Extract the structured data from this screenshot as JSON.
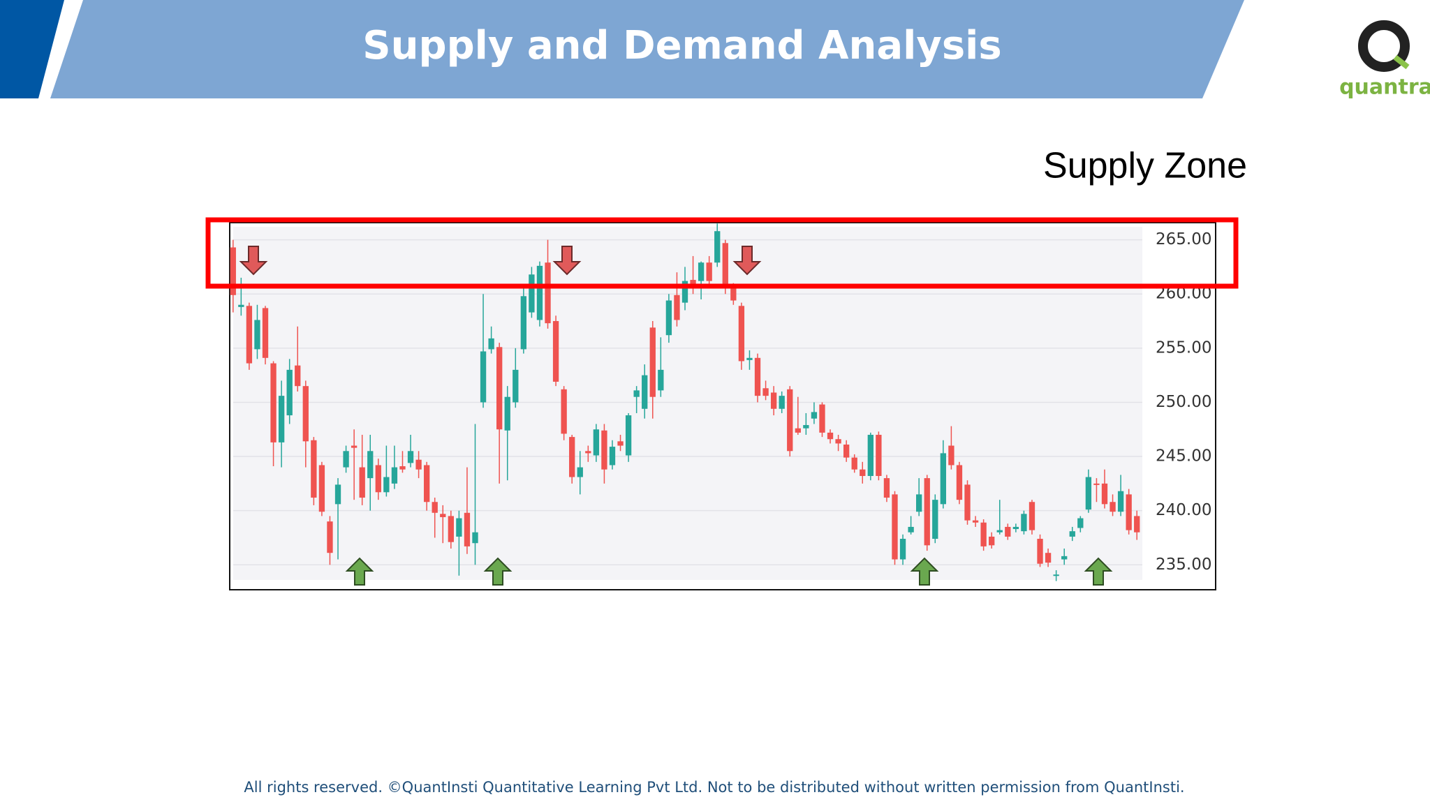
{
  "slide": {
    "title": "Supply and Demand Analysis",
    "logo_text": "quantra",
    "footer": "All rights reserved. ©QuantInsti Quantitative Learning Pvt Ltd. Not to be distributed without written permission from QuantInsti."
  },
  "chart_data": {
    "type": "candlestick",
    "annotation": "Supply Zone",
    "up_color": "#26a69a",
    "down_color": "#ef5350",
    "ylim": [
      233.6,
      266.2
    ],
    "yticks": [
      {
        "value": 235,
        "label": "235.00"
      },
      {
        "value": 240,
        "label": "240.00"
      },
      {
        "value": 245,
        "label": "245.00"
      },
      {
        "value": 250,
        "label": "250.00"
      },
      {
        "value": 255,
        "label": "255.00"
      },
      {
        "value": 260,
        "label": "260.00"
      },
      {
        "value": 265,
        "label": "265.00"
      }
    ],
    "grid": true,
    "ohlc": [
      [
        264.3,
        265.0,
        258.3,
        259.9
      ],
      [
        258.8,
        261.5,
        258.0,
        259.0
      ],
      [
        258.9,
        259.2,
        253.0,
        253.6
      ],
      [
        254.9,
        259.0,
        254.0,
        257.6
      ],
      [
        258.7,
        258.9,
        253.5,
        254.1
      ],
      [
        253.6,
        253.8,
        244.1,
        246.3
      ],
      [
        246.3,
        252.0,
        244.0,
        250.6
      ],
      [
        248.8,
        254.0,
        248.0,
        253.0
      ],
      [
        253.4,
        257.0,
        251.0,
        251.5
      ],
      [
        251.5,
        252.0,
        244.0,
        246.4
      ],
      [
        246.5,
        246.8,
        240.5,
        241.2
      ],
      [
        244.2,
        244.5,
        239.5,
        239.9
      ],
      [
        239.0,
        239.5,
        235.0,
        236.1
      ],
      [
        240.6,
        243.0,
        235.5,
        242.4
      ],
      [
        244.0,
        246.0,
        243.5,
        245.5
      ],
      [
        246.0,
        247.5,
        241.0,
        245.8
      ],
      [
        244.0,
        247.0,
        240.5,
        241.2
      ],
      [
        243.0,
        247.0,
        240.0,
        245.5
      ],
      [
        244.2,
        244.8,
        241.0,
        241.7
      ],
      [
        241.7,
        246.0,
        241.3,
        243.1
      ],
      [
        242.5,
        246.0,
        242.0,
        244.0
      ],
      [
        244.1,
        245.5,
        243.5,
        243.8
      ],
      [
        244.4,
        247.0,
        244.0,
        245.5
      ],
      [
        244.7,
        245.5,
        243.0,
        243.8
      ],
      [
        244.2,
        244.5,
        240.0,
        240.8
      ],
      [
        240.8,
        241.2,
        237.5,
        239.8
      ],
      [
        239.7,
        240.5,
        237.0,
        239.4
      ],
      [
        239.5,
        240.0,
        236.5,
        237.1
      ],
      [
        237.6,
        240.0,
        234.0,
        239.3
      ],
      [
        239.8,
        244.0,
        236.0,
        236.7
      ],
      [
        237.0,
        248.0,
        235.0,
        238.0
      ],
      [
        250.0,
        260.0,
        249.5,
        254.7
      ],
      [
        254.9,
        257.0,
        254.5,
        255.9
      ],
      [
        255.1,
        255.5,
        242.5,
        247.5
      ],
      [
        247.4,
        251.5,
        242.8,
        250.5
      ],
      [
        250.0,
        255.0,
        249.5,
        253.0
      ],
      [
        254.9,
        260.5,
        254.5,
        259.8
      ],
      [
        258.3,
        262.5,
        257.8,
        261.8
      ],
      [
        257.6,
        263.0,
        257.0,
        262.6
      ],
      [
        262.9,
        265.0,
        256.8,
        257.3
      ],
      [
        257.5,
        258.0,
        251.5,
        251.9
      ],
      [
        251.2,
        251.5,
        246.5,
        247.1
      ],
      [
        246.8,
        247.0,
        242.5,
        243.1
      ],
      [
        243.1,
        245.5,
        241.5,
        244.0
      ],
      [
        245.5,
        246.0,
        244.5,
        245.3
      ],
      [
        245.1,
        248.0,
        244.5,
        247.5
      ],
      [
        247.4,
        248.0,
        242.5,
        243.8
      ],
      [
        244.2,
        246.5,
        243.8,
        245.9
      ],
      [
        246.4,
        247.0,
        245.5,
        246.0
      ],
      [
        245.1,
        249.0,
        244.5,
        248.8
      ],
      [
        250.5,
        251.5,
        249.0,
        251.1
      ],
      [
        249.4,
        253.5,
        248.5,
        252.5
      ],
      [
        256.9,
        257.5,
        248.5,
        250.5
      ],
      [
        251.1,
        256.0,
        250.5,
        253.0
      ],
      [
        256.2,
        260.0,
        255.5,
        259.4
      ],
      [
        259.9,
        262.0,
        257.0,
        257.6
      ],
      [
        259.2,
        262.5,
        258.5,
        261.2
      ],
      [
        261.3,
        263.5,
        260.0,
        260.5
      ],
      [
        261.2,
        263.0,
        259.5,
        262.9
      ],
      [
        262.9,
        263.5,
        260.5,
        261.2
      ],
      [
        262.9,
        266.5,
        262.5,
        265.8
      ],
      [
        264.7,
        265.0,
        260.0,
        260.5
      ],
      [
        260.5,
        261.0,
        259.0,
        259.4
      ],
      [
        258.9,
        259.2,
        253.0,
        253.8
      ],
      [
        253.9,
        254.8,
        253.0,
        254.1
      ],
      [
        254.1,
        254.5,
        250.0,
        250.6
      ],
      [
        251.3,
        252.0,
        250.2,
        250.6
      ],
      [
        250.9,
        251.5,
        248.8,
        249.4
      ],
      [
        249.4,
        251.0,
        249.0,
        250.6
      ],
      [
        251.2,
        251.5,
        245.0,
        245.5
      ],
      [
        247.6,
        250.5,
        247.0,
        247.2
      ],
      [
        247.6,
        249.0,
        247.0,
        247.9
      ],
      [
        248.5,
        250.0,
        248.0,
        249.1
      ],
      [
        249.8,
        250.0,
        246.8,
        247.2
      ],
      [
        247.2,
        247.5,
        246.2,
        246.6
      ],
      [
        246.6,
        247.0,
        245.5,
        246.2
      ],
      [
        246.1,
        246.5,
        244.5,
        244.9
      ],
      [
        244.9,
        245.2,
        243.5,
        243.8
      ],
      [
        243.8,
        244.5,
        242.5,
        243.2
      ],
      [
        243.2,
        247.2,
        242.8,
        247.0
      ],
      [
        247.0,
        247.3,
        242.8,
        243.2
      ],
      [
        243.0,
        243.3,
        240.8,
        241.2
      ],
      [
        241.5,
        241.8,
        235.0,
        235.5
      ],
      [
        235.5,
        237.8,
        235.0,
        237.4
      ],
      [
        238.0,
        239.5,
        237.8,
        238.5
      ],
      [
        239.9,
        243.0,
        239.5,
        241.5
      ],
      [
        243.0,
        243.3,
        236.3,
        236.8
      ],
      [
        237.4,
        241.5,
        237.0,
        241.0
      ],
      [
        240.6,
        246.5,
        240.2,
        245.3
      ],
      [
        246.0,
        247.8,
        243.8,
        244.2
      ],
      [
        244.2,
        244.5,
        240.6,
        241.0
      ],
      [
        242.4,
        242.8,
        238.7,
        239.1
      ],
      [
        239.1,
        239.5,
        238.5,
        238.9
      ],
      [
        238.9,
        239.2,
        236.3,
        236.7
      ],
      [
        237.6,
        238.0,
        236.5,
        236.8
      ],
      [
        238.0,
        241.0,
        237.8,
        238.2
      ],
      [
        238.5,
        238.8,
        237.3,
        237.6
      ],
      [
        238.3,
        238.8,
        238.0,
        238.5
      ],
      [
        238.1,
        240.0,
        237.8,
        239.7
      ],
      [
        240.8,
        241.0,
        237.8,
        238.2
      ],
      [
        237.4,
        237.8,
        234.8,
        235.1
      ],
      [
        236.1,
        236.5,
        234.8,
        235.2
      ],
      [
        234.0,
        234.5,
        233.5,
        234.1
      ],
      [
        235.5,
        236.5,
        235.0,
        235.8
      ],
      [
        237.6,
        238.5,
        237.2,
        238.1
      ],
      [
        238.4,
        239.5,
        238.0,
        239.3
      ],
      [
        240.1,
        243.8,
        239.8,
        243.1
      ],
      [
        242.5,
        243.0,
        240.8,
        242.4
      ],
      [
        242.5,
        243.8,
        240.2,
        240.6
      ],
      [
        240.8,
        241.5,
        239.5,
        239.9
      ],
      [
        239.9,
        243.3,
        239.5,
        241.8
      ],
      [
        241.5,
        242.0,
        237.8,
        238.2
      ],
      [
        239.5,
        240.0,
        237.3,
        238.0
      ]
    ]
  }
}
